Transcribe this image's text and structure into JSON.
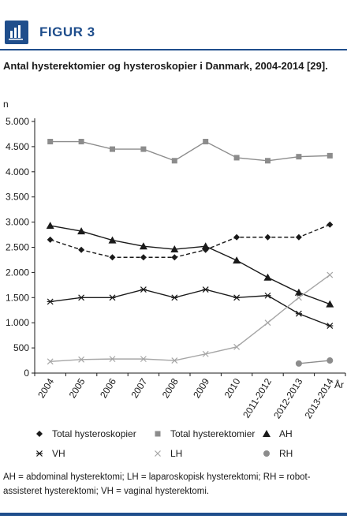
{
  "header": {
    "figure_label": "FIGUR 3"
  },
  "title": "Antal hysterektomier og hysteroskopier i Danmark, 2004-2014 [29].",
  "footnote": "AH = abdominal hysterektomi; LH = laparoskopisk hysterektomi; RH = robot-assisteret hysterektomi; VH = vaginal hysterektomi.",
  "colors": {
    "brand": "#1f4e8c",
    "dark": "#1a1a1a",
    "gray": "#8c8c8c",
    "light_gray": "#a6a6a6"
  },
  "chart_data": {
    "type": "line",
    "ylabel": "n",
    "xlabel": "År",
    "ylim": [
      0,
      5000
    ],
    "yticks": [
      0,
      500,
      1000,
      1500,
      2000,
      2500,
      3000,
      3500,
      4000,
      4500,
      5000
    ],
    "ytick_labels": [
      "0",
      "500",
      "1.000",
      "1.500",
      "2.000",
      "2.500",
      "3.000",
      "3.500",
      "4.000",
      "4.500",
      "5.000"
    ],
    "categories": [
      "2004",
      "2005",
      "2006",
      "2007",
      "2008",
      "2009",
      "2010",
      "2011-2012",
      "2012-2013",
      "2013-2014"
    ],
    "grid": false,
    "legend_position": "bottom",
    "series": [
      {
        "name": "Total hysteroskopier",
        "marker": "diamond",
        "dash": true,
        "color": "#1a1a1a",
        "values": [
          2650,
          2450,
          2300,
          2300,
          2300,
          2450,
          2700,
          2700,
          2700,
          2950
        ]
      },
      {
        "name": "Total hysterektomier",
        "marker": "square",
        "dash": false,
        "color": "#8c8c8c",
        "values": [
          4600,
          4600,
          4450,
          4450,
          4220,
          4600,
          4280,
          4220,
          4300,
          4320
        ]
      },
      {
        "name": "AH",
        "marker": "triangle",
        "dash": false,
        "color": "#1a1a1a",
        "values": [
          2930,
          2820,
          2640,
          2520,
          2460,
          2520,
          2240,
          1900,
          1600,
          1370
        ]
      },
      {
        "name": "VH",
        "marker": "star",
        "dash": false,
        "color": "#1a1a1a",
        "values": [
          1420,
          1500,
          1500,
          1660,
          1500,
          1660,
          1500,
          1540,
          1180,
          940
        ]
      },
      {
        "name": "LH",
        "marker": "cross",
        "dash": false,
        "color": "#a6a6a6",
        "values": [
          230,
          270,
          280,
          280,
          250,
          380,
          520,
          1000,
          1500,
          1950
        ]
      },
      {
        "name": "RH",
        "marker": "circle",
        "dash": false,
        "color": "#8c8c8c",
        "values": [
          null,
          null,
          null,
          null,
          null,
          null,
          null,
          null,
          190,
          250
        ]
      }
    ]
  }
}
